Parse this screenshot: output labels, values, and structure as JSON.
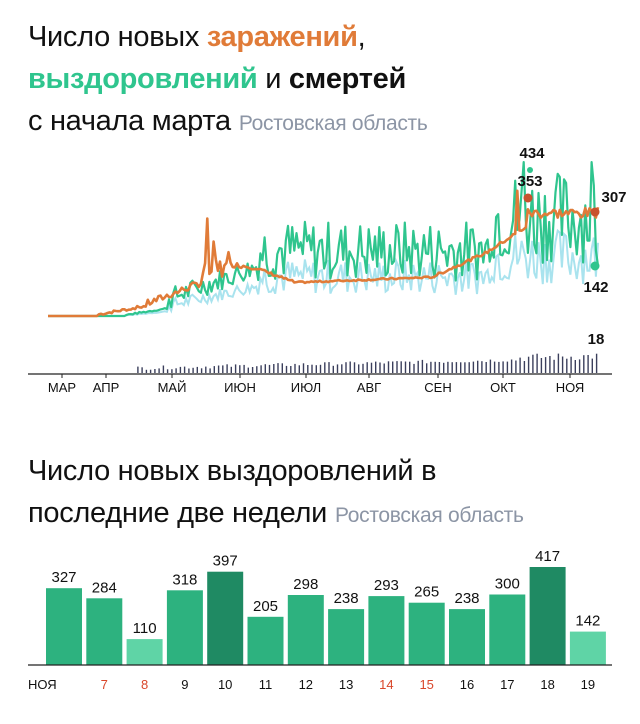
{
  "chart1": {
    "title_parts": {
      "line1_text": "Число новых ",
      "line1_orange": "заражений",
      "line1_comma": ",",
      "line2_green": "выздоровлений",
      "line2_and": " и ",
      "line2_dark": "смертей",
      "line3_text": "с начала марта",
      "region": "Ростовская область"
    },
    "colors": {
      "infections": "#e07b38",
      "infections_avg": "#c8522e",
      "recoveries": "#2fc58e",
      "recoveries_light": "#a9e3ee",
      "deaths": "#3b3f5c",
      "axis": "#222222"
    },
    "annotations": {
      "recoveries_peak": "434",
      "infections_peak": "353",
      "infections_last": "307",
      "recoveries_last": "142",
      "deaths_last": "18"
    }
  },
  "chart_data": [
    {
      "type": "line",
      "title": "Число новых заражений, выздоровлений и смертей с начала марта",
      "subtitle": "Ростовская область",
      "xlabel": "",
      "ylabel": "",
      "x_ticks": [
        "МАР",
        "АПР",
        "МАЙ",
        "ИЮН",
        "ИЮЛ",
        "АВГ",
        "СЕН",
        "ОКТ",
        "НОЯ"
      ],
      "grid": false,
      "series": [
        {
          "name": "заражений",
          "color": "#e07b38",
          "points": [
            [
              "МАР",
              0
            ],
            [
              "АПР",
              0
            ],
            [
              "АПР",
              25
            ],
            [
              "МАЙ",
              50
            ],
            [
              "МАЙ",
              90
            ],
            [
              "ИЮН",
              150
            ],
            [
              "ИЮН",
              140
            ],
            [
              "ИЮЛ",
              90
            ],
            [
              "АВГ",
              105
            ],
            [
              "СЕН",
              105
            ],
            [
              "ОКТ",
              175
            ],
            [
              "ОКТ",
              240
            ],
            [
              "ОКТ",
              353
            ],
            [
              "НОЯ",
              290
            ],
            [
              "НОЯ",
              307
            ]
          ]
        },
        {
          "name": "выздоровлений",
          "color": "#2fc58e",
          "points": [
            [
              "МАР",
              0
            ],
            [
              "АПР",
              0
            ],
            [
              "МАЙ",
              20
            ],
            [
              "ИЮН",
              200
            ],
            [
              "ИЮЛ",
              210
            ],
            [
              "АВГ",
              190
            ],
            [
              "СЕН",
              230
            ],
            [
              "ОКТ",
              300
            ],
            [
              "ОКТ",
              434
            ],
            [
              "НОЯ",
              310
            ],
            [
              "НОЯ",
              142
            ]
          ]
        },
        {
          "name": "смертей",
          "color": "#3b3f5c",
          "points": [
            [
              "АПР",
              0
            ],
            [
              "МАЙ",
              2
            ],
            [
              "ИЮН",
              3
            ],
            [
              "ИЮЛ",
              4
            ],
            [
              "АВГ",
              4
            ],
            [
              "СЕН",
              6
            ],
            [
              "ОКТ",
              10
            ],
            [
              "НОЯ",
              15
            ],
            [
              "НОЯ",
              18
            ]
          ]
        }
      ],
      "annotations": [
        "434",
        "353",
        "307",
        "142",
        "18"
      ]
    },
    {
      "type": "bar",
      "title": "Число новых выздоровлений в последние две недели",
      "subtitle": "Ростовская область",
      "categories": [
        "НОЯ",
        "7",
        "8",
        "9",
        "10",
        "11",
        "12",
        "13",
        "14",
        "15",
        "16",
        "17",
        "18",
        "19"
      ],
      "values": [
        327,
        284,
        110,
        318,
        397,
        205,
        298,
        238,
        293,
        265,
        238,
        300,
        417,
        142
      ],
      "weekend_labels": [
        "7",
        "8",
        "14",
        "15"
      ],
      "highlight": [
        "10",
        "18"
      ],
      "xlabel": "",
      "ylabel": "",
      "ylim": [
        0,
        417
      ]
    }
  ],
  "chart2": {
    "title_line1": "Число новых выздоровлений в",
    "title_line2": "последние две недели",
    "region": "Ростовская область",
    "colors": {
      "bar": "#2db27f",
      "bar_dark": "#1f8a63",
      "bar_light": "#5fd4a6"
    }
  }
}
